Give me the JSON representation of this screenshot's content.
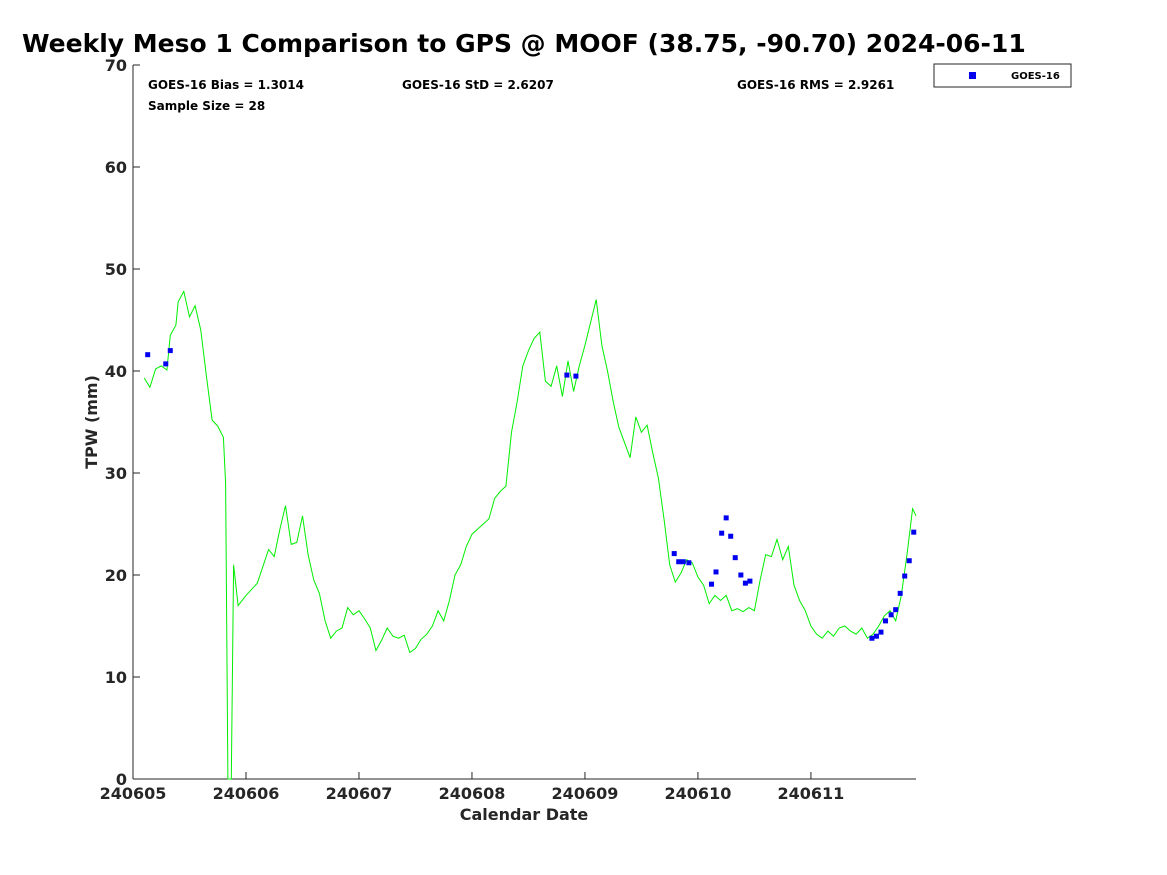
{
  "chart_data": {
    "type": "scatter",
    "title": "Weekly Meso 1 Comparison to GPS @ MOOF (38.75, -90.70) 2024-06-11",
    "xlabel": "Calendar Date",
    "ylabel": "TPW (mm)",
    "xlim": [
      240605,
      240611.93
    ],
    "ylim": [
      0,
      70
    ],
    "x_ticks": [
      240605,
      240606,
      240607,
      240608,
      240609,
      240610,
      240611
    ],
    "x_tick_labels": [
      "240605",
      "240606",
      "240607",
      "240608",
      "240609",
      "240610",
      "240611"
    ],
    "y_ticks": [
      0,
      10,
      20,
      30,
      40,
      50,
      60,
      70
    ],
    "y_tick_labels": [
      "0",
      "10",
      "20",
      "30",
      "40",
      "50",
      "60",
      "70"
    ],
    "grid": false,
    "legend_position": "top-right",
    "stats": [
      "GOES-16 Bias = 1.3014",
      "GOES-16 StD = 2.6207",
      "GOES-16 RMS = 2.9261",
      "Sample Size = 28"
    ],
    "series": [
      {
        "name": "GOES-16",
        "marker": "square",
        "color": "#0000ee",
        "points": [
          [
            240605.13,
            41.6
          ],
          [
            240605.29,
            40.7
          ],
          [
            240605.33,
            42.0
          ],
          [
            240608.84,
            39.6
          ],
          [
            240608.92,
            39.5
          ],
          [
            240609.79,
            22.1
          ],
          [
            240609.83,
            21.3
          ],
          [
            240609.87,
            21.3
          ],
          [
            240609.92,
            21.2
          ],
          [
            240610.12,
            19.1
          ],
          [
            240610.16,
            20.3
          ],
          [
            240610.21,
            24.1
          ],
          [
            240610.25,
            25.6
          ],
          [
            240610.29,
            23.8
          ],
          [
            240610.33,
            21.7
          ],
          [
            240610.38,
            20.0
          ],
          [
            240610.42,
            19.2
          ],
          [
            240610.46,
            19.4
          ],
          [
            240611.54,
            13.8
          ],
          [
            240611.58,
            14.0
          ],
          [
            240611.62,
            14.4
          ],
          [
            240611.66,
            15.5
          ],
          [
            240611.71,
            16.1
          ],
          [
            240611.75,
            16.6
          ],
          [
            240611.79,
            18.2
          ],
          [
            240611.83,
            19.9
          ],
          [
            240611.87,
            21.4
          ],
          [
            240611.91,
            24.2
          ]
        ]
      },
      {
        "type": "line",
        "color": "#00ee00",
        "points": [
          [
            240605.1,
            39.3
          ],
          [
            240605.15,
            38.4
          ],
          [
            240605.2,
            40.2
          ],
          [
            240605.25,
            40.5
          ],
          [
            240605.3,
            40.1
          ],
          [
            240605.33,
            43.5
          ],
          [
            240605.38,
            44.5
          ],
          [
            240605.4,
            46.8
          ],
          [
            240605.45,
            47.8
          ],
          [
            240605.5,
            45.3
          ],
          [
            240605.55,
            46.4
          ],
          [
            240605.6,
            44.0
          ],
          [
            240605.65,
            39.5
          ],
          [
            240605.7,
            35.2
          ],
          [
            240605.75,
            34.6
          ],
          [
            240605.8,
            33.5
          ],
          [
            240605.82,
            29.0
          ],
          [
            240605.84,
            0.0
          ],
          [
            240605.87,
            0.0
          ],
          [
            240605.89,
            21.0
          ],
          [
            240605.93,
            17.0
          ],
          [
            240606.0,
            18.0
          ],
          [
            240606.1,
            19.2
          ],
          [
            240606.2,
            22.5
          ],
          [
            240606.25,
            21.8
          ],
          [
            240606.3,
            24.5
          ],
          [
            240606.35,
            26.8
          ],
          [
            240606.4,
            23.0
          ],
          [
            240606.45,
            23.2
          ],
          [
            240606.5,
            25.8
          ],
          [
            240606.55,
            22.0
          ],
          [
            240606.6,
            19.5
          ],
          [
            240606.65,
            18.2
          ],
          [
            240606.7,
            15.5
          ],
          [
            240606.75,
            13.8
          ],
          [
            240606.8,
            14.5
          ],
          [
            240606.85,
            14.8
          ],
          [
            240606.9,
            16.8
          ],
          [
            240606.95,
            16.1
          ],
          [
            240607.0,
            16.5
          ],
          [
            240607.05,
            15.7
          ],
          [
            240607.1,
            14.8
          ],
          [
            240607.15,
            12.6
          ],
          [
            240607.2,
            13.6
          ],
          [
            240607.25,
            14.8
          ],
          [
            240607.3,
            14.0
          ],
          [
            240607.35,
            13.8
          ],
          [
            240607.4,
            14.1
          ],
          [
            240607.45,
            12.4
          ],
          [
            240607.5,
            12.8
          ],
          [
            240607.55,
            13.7
          ],
          [
            240607.6,
            14.2
          ],
          [
            240607.65,
            15.0
          ],
          [
            240607.7,
            16.5
          ],
          [
            240607.75,
            15.5
          ],
          [
            240607.8,
            17.5
          ],
          [
            240607.85,
            20.0
          ],
          [
            240607.9,
            21.0
          ],
          [
            240607.95,
            22.8
          ],
          [
            240608.0,
            24.0
          ],
          [
            240608.05,
            24.5
          ],
          [
            240608.1,
            25.0
          ],
          [
            240608.15,
            25.5
          ],
          [
            240608.2,
            27.5
          ],
          [
            240608.25,
            28.2
          ],
          [
            240608.3,
            28.7
          ],
          [
            240608.35,
            34.0
          ],
          [
            240608.4,
            37.0
          ],
          [
            240608.45,
            40.5
          ],
          [
            240608.5,
            42.0
          ],
          [
            240608.55,
            43.2
          ],
          [
            240608.6,
            43.8
          ],
          [
            240608.65,
            39.0
          ],
          [
            240608.7,
            38.5
          ],
          [
            240608.75,
            40.5
          ],
          [
            240608.8,
            37.5
          ],
          [
            240608.85,
            41.0
          ],
          [
            240608.9,
            38.0
          ],
          [
            240608.95,
            40.5
          ],
          [
            240609.0,
            42.5
          ],
          [
            240609.1,
            47.0
          ],
          [
            240609.15,
            42.5
          ],
          [
            240609.2,
            40.0
          ],
          [
            240609.25,
            37.0
          ],
          [
            240609.3,
            34.5
          ],
          [
            240609.35,
            33.0
          ],
          [
            240609.4,
            31.5
          ],
          [
            240609.45,
            35.5
          ],
          [
            240609.5,
            34.0
          ],
          [
            240609.55,
            34.7
          ],
          [
            240609.6,
            32.0
          ],
          [
            240609.65,
            29.5
          ],
          [
            240609.7,
            25.5
          ],
          [
            240609.75,
            21.0
          ],
          [
            240609.8,
            19.3
          ],
          [
            240609.85,
            20.2
          ],
          [
            240609.9,
            21.5
          ],
          [
            240609.95,
            21.2
          ],
          [
            240610.0,
            19.8
          ],
          [
            240610.05,
            19.0
          ],
          [
            240610.1,
            17.2
          ],
          [
            240610.15,
            18.0
          ],
          [
            240610.2,
            17.5
          ],
          [
            240610.25,
            18.0
          ],
          [
            240610.3,
            16.5
          ],
          [
            240610.35,
            16.7
          ],
          [
            240610.4,
            16.4
          ],
          [
            240610.45,
            16.8
          ],
          [
            240610.5,
            16.5
          ],
          [
            240610.55,
            19.5
          ],
          [
            240610.6,
            22.0
          ],
          [
            240610.65,
            21.8
          ],
          [
            240610.7,
            23.5
          ],
          [
            240610.75,
            21.5
          ],
          [
            240610.8,
            22.8
          ],
          [
            240610.85,
            19.0
          ],
          [
            240610.9,
            17.5
          ],
          [
            240610.95,
            16.5
          ],
          [
            240611.0,
            15.0
          ],
          [
            240611.05,
            14.2
          ],
          [
            240611.1,
            13.8
          ],
          [
            240611.15,
            14.5
          ],
          [
            240611.2,
            14.0
          ],
          [
            240611.25,
            14.8
          ],
          [
            240611.3,
            15.0
          ],
          [
            240611.35,
            14.5
          ],
          [
            240611.4,
            14.2
          ],
          [
            240611.45,
            14.8
          ],
          [
            240611.5,
            13.8
          ],
          [
            240611.55,
            14.2
          ],
          [
            240611.6,
            15.0
          ],
          [
            240611.65,
            16.0
          ],
          [
            240611.7,
            16.5
          ],
          [
            240611.75,
            15.5
          ],
          [
            240611.8,
            18.0
          ],
          [
            240611.85,
            22.0
          ],
          [
            240611.9,
            26.5
          ],
          [
            240611.93,
            25.8
          ]
        ]
      }
    ]
  }
}
